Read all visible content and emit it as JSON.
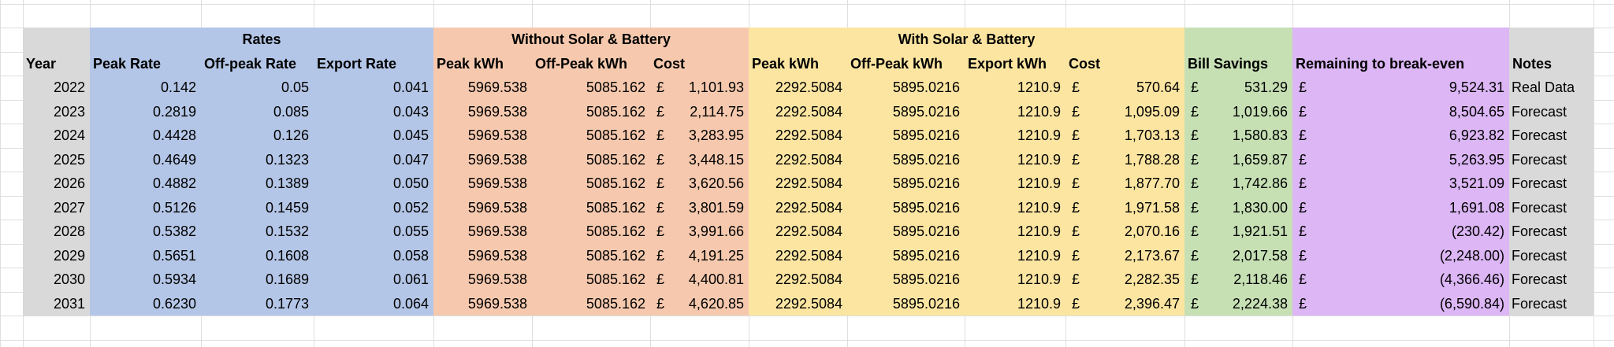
{
  "currency_symbol": "£",
  "group_headers": [
    "Rates",
    "Without Solar & Battery",
    "With Solar & Battery"
  ],
  "columns": [
    "Year",
    "Peak Rate",
    "Off-peak Rate",
    "Export Rate",
    "Peak kWh",
    "Off-Peak kWh",
    "Cost",
    "Peak kWh",
    "Off-Peak kWh",
    "Export kWh",
    "Cost",
    "Bill Savings",
    "Remaining to break-even",
    "Notes"
  ],
  "rows": [
    [
      "2022",
      "0.142",
      "0.05",
      "0.041",
      "5969.538",
      "5085.162",
      "1,101.93",
      "2292.5084",
      "5895.0216",
      "1210.9",
      "570.64",
      "531.29",
      "9,524.31",
      "Real Data"
    ],
    [
      "2023",
      "0.2819",
      "0.085",
      "0.043",
      "5969.538",
      "5085.162",
      "2,114.75",
      "2292.5084",
      "5895.0216",
      "1210.9",
      "1,095.09",
      "1,019.66",
      "8,504.65",
      "Forecast"
    ],
    [
      "2024",
      "0.4428",
      "0.126",
      "0.045",
      "5969.538",
      "5085.162",
      "3,283.95",
      "2292.5084",
      "5895.0216",
      "1210.9",
      "1,703.13",
      "1,580.83",
      "6,923.82",
      "Forecast"
    ],
    [
      "2025",
      "0.4649",
      "0.1323",
      "0.047",
      "5969.538",
      "5085.162",
      "3,448.15",
      "2292.5084",
      "5895.0216",
      "1210.9",
      "1,788.28",
      "1,659.87",
      "5,263.95",
      "Forecast"
    ],
    [
      "2026",
      "0.4882",
      "0.1389",
      "0.050",
      "5969.538",
      "5085.162",
      "3,620.56",
      "2292.5084",
      "5895.0216",
      "1210.9",
      "1,877.70",
      "1,742.86",
      "3,521.09",
      "Forecast"
    ],
    [
      "2027",
      "0.5126",
      "0.1459",
      "0.052",
      "5969.538",
      "5085.162",
      "3,801.59",
      "2292.5084",
      "5895.0216",
      "1210.9",
      "1,971.58",
      "1,830.00",
      "1,691.08",
      "Forecast"
    ],
    [
      "2028",
      "0.5382",
      "0.1532",
      "0.055",
      "5969.538",
      "5085.162",
      "3,991.66",
      "2292.5084",
      "5895.0216",
      "1210.9",
      "2,070.16",
      "1,921.51",
      "(230.42)",
      "Forecast"
    ],
    [
      "2029",
      "0.5651",
      "0.1608",
      "0.058",
      "5969.538",
      "5085.162",
      "4,191.25",
      "2292.5084",
      "5895.0216",
      "1210.9",
      "2,173.67",
      "2,017.58",
      "(2,248.00)",
      "Forecast"
    ],
    [
      "2030",
      "0.5934",
      "0.1689",
      "0.061",
      "5969.538",
      "5085.162",
      "4,400.81",
      "2292.5084",
      "5895.0216",
      "1210.9",
      "2,282.35",
      "2,118.46",
      "(4,366.46)",
      "Forecast"
    ],
    [
      "2031",
      "0.6230",
      "0.1773",
      "0.064",
      "5969.538",
      "5085.162",
      "4,620.85",
      "2292.5084",
      "5895.0216",
      "1210.9",
      "2,396.47",
      "2,224.38",
      "(6,590.84)",
      "Forecast"
    ]
  ]
}
